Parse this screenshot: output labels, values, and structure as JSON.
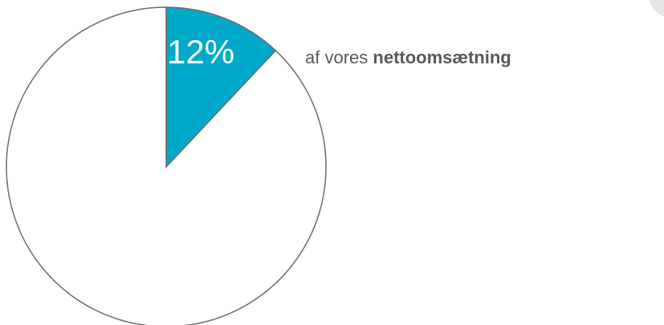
{
  "chart_data": {
    "type": "pie",
    "values": [
      12,
      88
    ],
    "value_labels": [
      "12%",
      null
    ],
    "colors": [
      "#00a9c9",
      "#ffffff"
    ],
    "annotation": {
      "text": "af vores",
      "emphasis": "nettoomsætning"
    }
  }
}
